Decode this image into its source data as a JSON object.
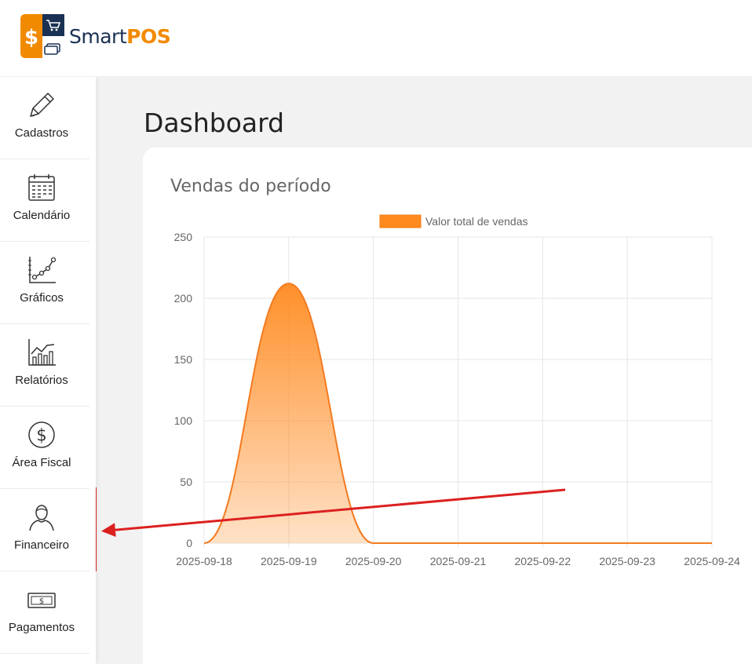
{
  "brand": {
    "smart": "Smart",
    "pos": "POS"
  },
  "sidebar": {
    "items": [
      {
        "label": "Cadastros",
        "icon": "pencil-icon"
      },
      {
        "label": "Calendário",
        "icon": "calendar-icon"
      },
      {
        "label": "Gráficos",
        "icon": "line-chart-icon"
      },
      {
        "label": "Relatórios",
        "icon": "bar-chart-icon"
      },
      {
        "label": "Área Fiscal",
        "icon": "dollar-circle-icon"
      },
      {
        "label": "Financeiro",
        "icon": "user-icon"
      },
      {
        "label": "Pagamentos",
        "icon": "banknote-icon"
      }
    ]
  },
  "page": {
    "title": "Dashboard"
  },
  "card": {
    "title": "Vendas do período"
  },
  "colors": {
    "accent": "#f28a00",
    "navy": "#1a3153",
    "series_fill": "#ff8a1f",
    "highlight": "#dc2020"
  },
  "chart_data": {
    "type": "area",
    "categories": [
      "2025-09-18",
      "2025-09-19",
      "2025-09-20",
      "2025-09-21",
      "2025-09-22",
      "2025-09-23",
      "2025-09-24"
    ],
    "series": [
      {
        "name": "Valor total de vendas",
        "values": [
          0,
          212,
          0,
          0,
          0,
          0,
          0
        ]
      }
    ],
    "ylim": [
      0,
      250
    ],
    "yticks": [
      0,
      50,
      100,
      150,
      200,
      250
    ],
    "grid": true,
    "legend": "top"
  }
}
